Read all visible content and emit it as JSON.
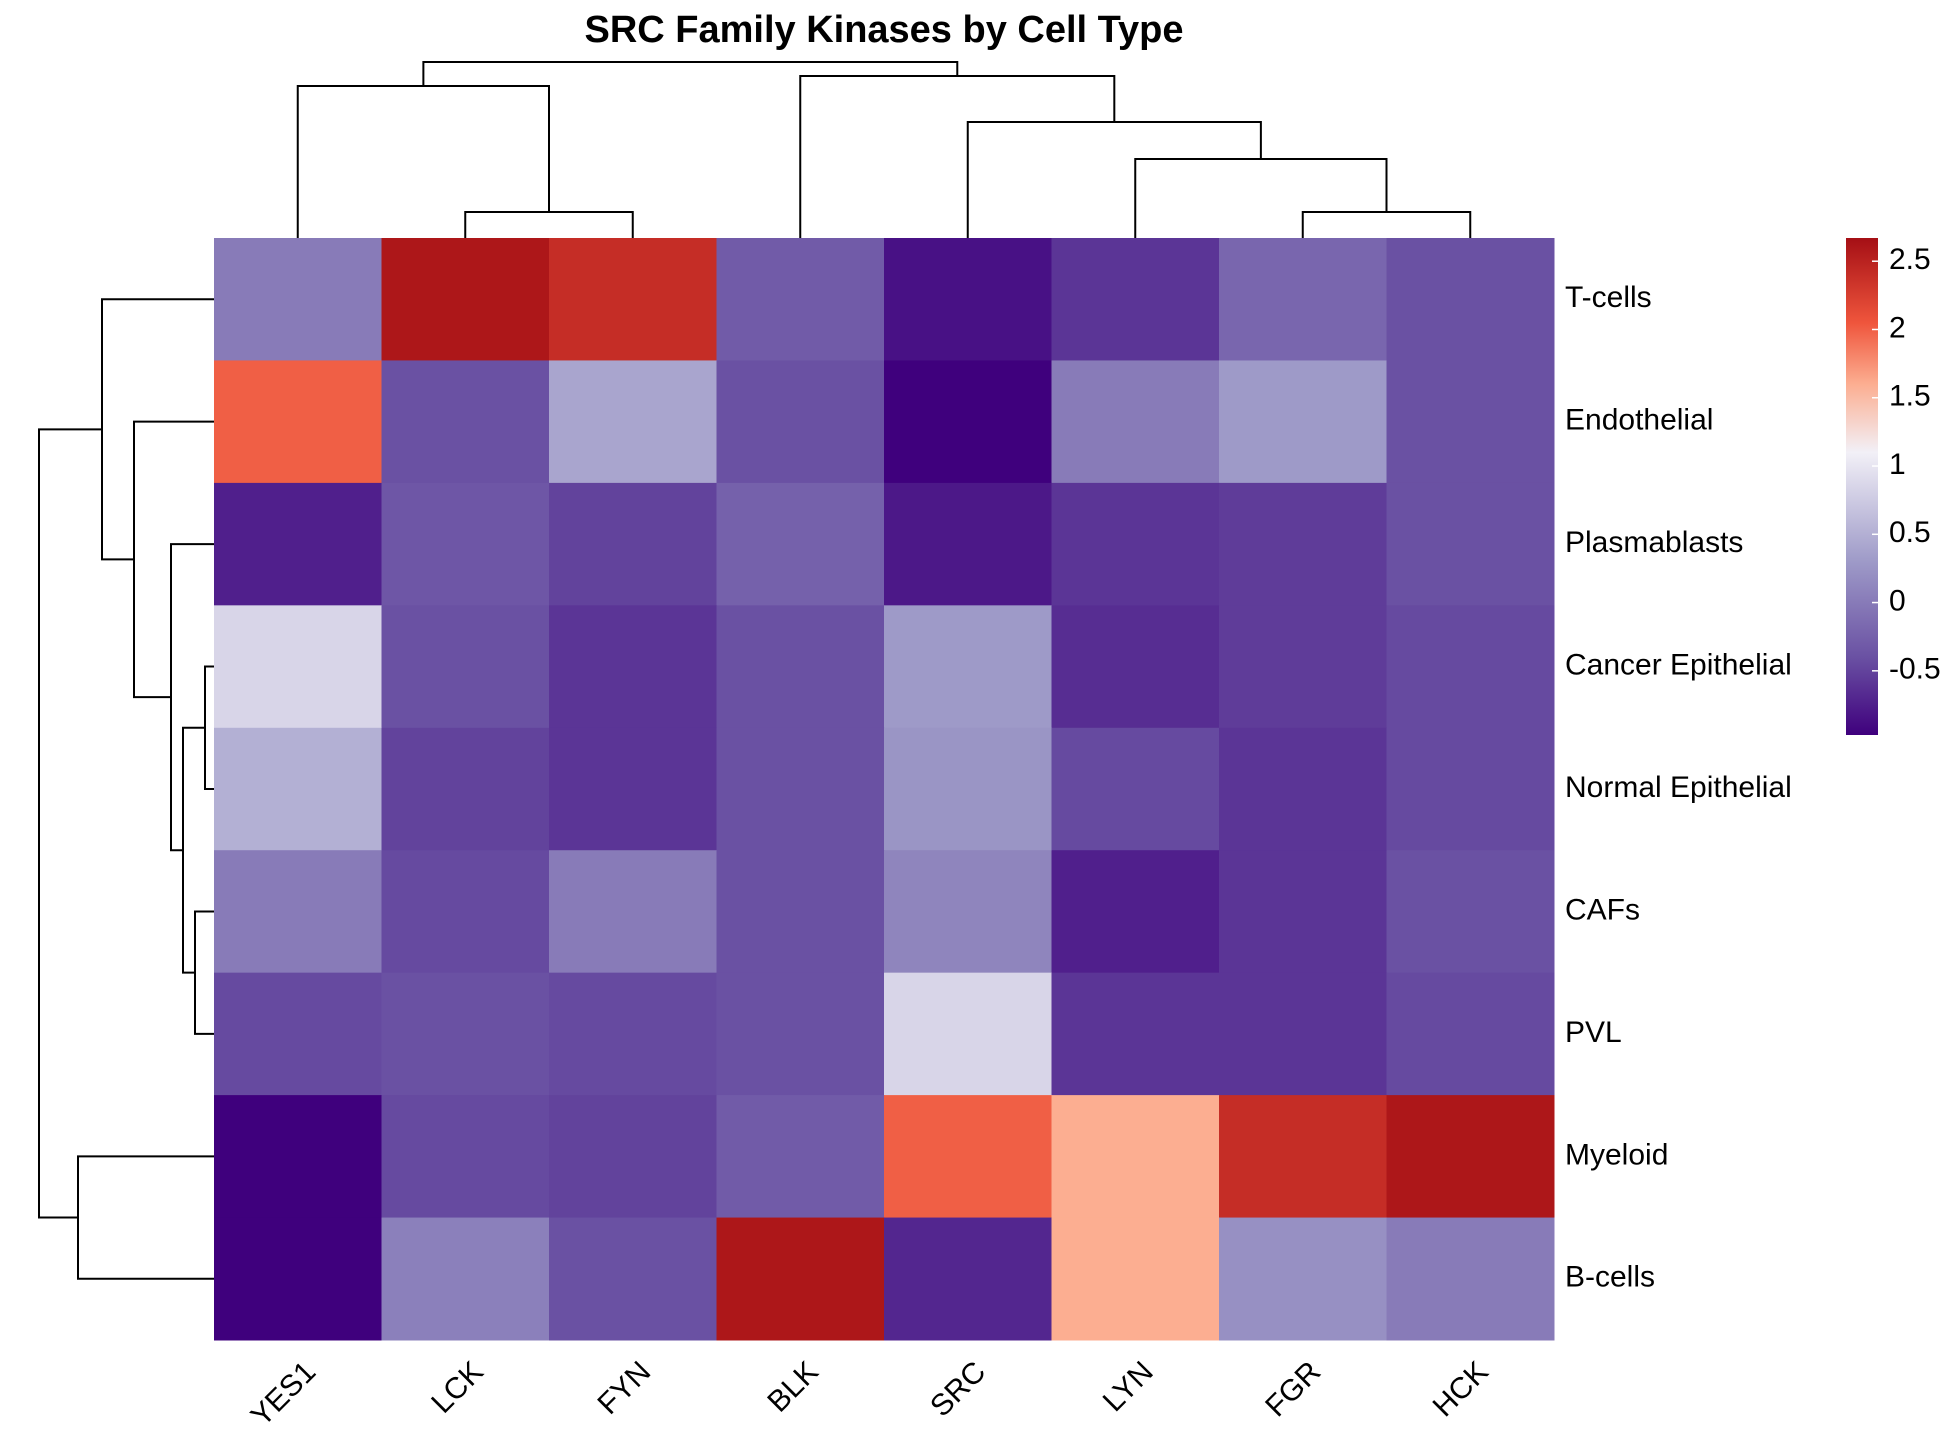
{
  "chart_data": {
    "type": "heatmap",
    "title": "SRC Family Kinases by Cell Type",
    "categories": [
      "YES1",
      "LCK",
      "FYN",
      "BLK",
      "SRC",
      "LYN",
      "FGR",
      "HCK"
    ],
    "row_categories": [
      "T-cells",
      "Endothelial",
      "Plasmablasts",
      "Cancer Epithelial",
      "Normal Epithelial",
      "CAFs",
      "PVL",
      "Myeloid",
      "B-cells"
    ],
    "values": [
      [
        0.0,
        2.6,
        2.4,
        -0.3,
        -0.85,
        -0.6,
        -0.2,
        -0.4
      ],
      [
        2.0,
        -0.4,
        0.4,
        -0.4,
        -0.97,
        0.0,
        0.3,
        -0.4
      ],
      [
        -0.75,
        -0.35,
        -0.5,
        -0.25,
        -0.8,
        -0.6,
        -0.55,
        -0.4
      ],
      [
        0.85,
        -0.4,
        -0.6,
        -0.4,
        0.3,
        -0.65,
        -0.55,
        -0.45
      ],
      [
        0.5,
        -0.5,
        -0.6,
        -0.4,
        0.25,
        -0.45,
        -0.6,
        -0.45
      ],
      [
        0.0,
        -0.45,
        0.0,
        -0.4,
        0.1,
        -0.75,
        -0.6,
        -0.4
      ],
      [
        -0.45,
        -0.4,
        -0.45,
        -0.4,
        0.85,
        -0.6,
        -0.6,
        -0.45
      ],
      [
        -0.97,
        -0.45,
        -0.5,
        -0.3,
        2.0,
        1.6,
        2.4,
        2.6
      ],
      [
        -0.97,
        0.05,
        -0.4,
        2.6,
        -0.7,
        1.6,
        0.2,
        0.0
      ]
    ],
    "colorbar_lim": [
      -0.97,
      2.67
    ],
    "colorbar_ticks": [
      -0.5,
      0,
      0.5,
      1,
      1.5,
      2,
      2.5
    ],
    "colorscale": [
      {
        "value": -0.97,
        "color": "#3f007d"
      },
      {
        "value": -0.4,
        "color": "#6a51a3"
      },
      {
        "value": 0.3,
        "color": "#9e9ac8"
      },
      {
        "value": 1.1,
        "color": "#f2f0f7"
      },
      {
        "value": 1.6,
        "color": "#fcae91"
      },
      {
        "value": 2.05,
        "color": "#ef553c"
      },
      {
        "value": 2.67,
        "color": "#a50f15"
      }
    ]
  }
}
